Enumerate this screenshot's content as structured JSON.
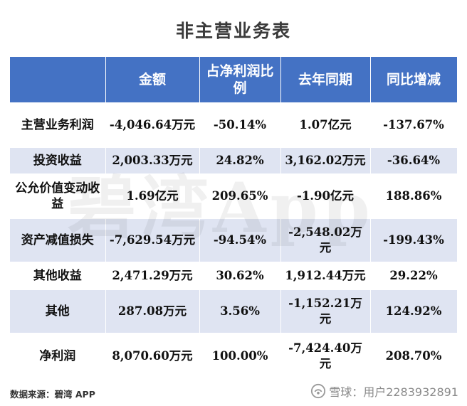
{
  "title": "非主营业务表",
  "watermark": "碧湾App",
  "source": "数据来源：碧湾 APP",
  "logo_text": "雪球：用户2283932891",
  "colors": {
    "header": "#4472c4",
    "band": "#dfe4f2"
  },
  "chart_data": {
    "type": "table",
    "title": "非主营业务表",
    "columns": [
      "",
      "金额",
      "占净利润比例",
      "去年同期",
      "同比增减"
    ],
    "rows": [
      [
        "主营业务利润",
        "-4,046.64万元",
        "-50.14%",
        "1.07亿元",
        "-137.67%"
      ],
      [
        "投资收益",
        "2,003.33万元",
        "24.82%",
        "3,162.02万元",
        "-36.64%"
      ],
      [
        "公允价值变动收益",
        "1.69亿元",
        "209.65%",
        "-1.90亿元",
        "188.86%"
      ],
      [
        "资产减值损失",
        "-7,629.54万元",
        "-94.54%",
        "-2,548.02万元",
        "-199.43%"
      ],
      [
        "其他收益",
        "2,471.29万元",
        "30.62%",
        "1,912.44万元",
        "29.22%"
      ],
      [
        "其他",
        "287.08万元",
        "3.56%",
        "-1,152.21万元",
        "124.92%"
      ],
      [
        "净利润",
        "8,070.60万元",
        "100.00%",
        "-7,424.40万元",
        "208.70%"
      ]
    ]
  }
}
